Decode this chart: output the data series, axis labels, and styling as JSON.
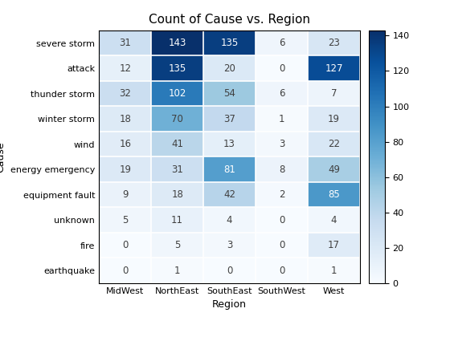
{
  "title": "Count of Cause vs. Region",
  "xlabel": "Region",
  "ylabel": "Cause",
  "columns": [
    "MidWest",
    "NorthEast",
    "SouthEast",
    "SouthWest",
    "West"
  ],
  "rows": [
    "severe storm",
    "attack",
    "thunder storm",
    "winter storm",
    "wind",
    "energy emergency",
    "equipment fault",
    "unknown",
    "fire",
    "earthquake"
  ],
  "matrix": [
    [
      31,
      143,
      135,
      6,
      23
    ],
    [
      12,
      135,
      20,
      0,
      127
    ],
    [
      32,
      102,
      54,
      6,
      7
    ],
    [
      18,
      70,
      37,
      1,
      19
    ],
    [
      16,
      41,
      13,
      3,
      22
    ],
    [
      19,
      31,
      81,
      8,
      49
    ],
    [
      9,
      18,
      42,
      2,
      85
    ],
    [
      5,
      11,
      4,
      0,
      4
    ],
    [
      0,
      5,
      3,
      0,
      17
    ],
    [
      0,
      1,
      0,
      0,
      1
    ]
  ],
  "vmin": 0,
  "vmax": 143,
  "colorbar_ticks": [
    0,
    20,
    40,
    60,
    80,
    100,
    120,
    140
  ],
  "text_color_threshold": 80,
  "title_fontsize": 11,
  "label_fontsize": 9,
  "tick_fontsize": 8,
  "cell_fontsize": 8.5
}
